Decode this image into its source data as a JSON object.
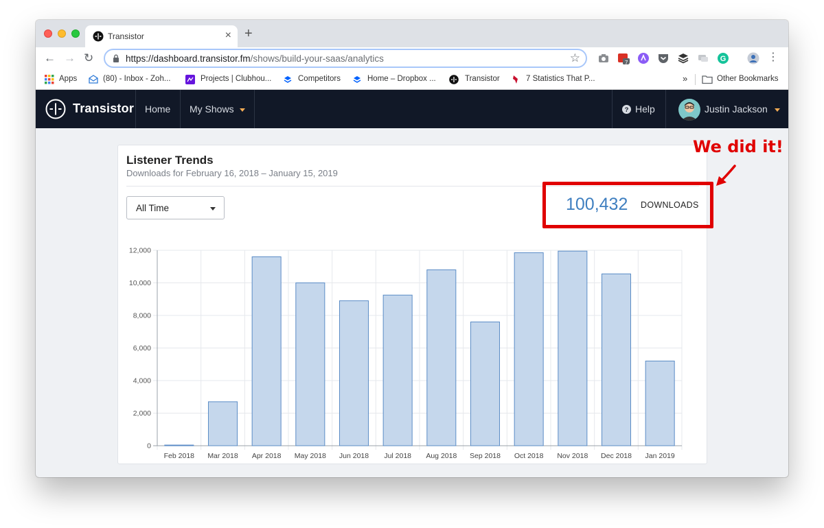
{
  "browser": {
    "tab_title": "Transistor",
    "tab_close": "×",
    "new_tab": "+",
    "url_host": "https://dashboard.transistor.fm",
    "url_path": "/shows/build-your-saas/analytics",
    "back": "←",
    "forward": "→",
    "reload": "↻",
    "star": "☆",
    "menu": "⋮",
    "extension_badge": "7"
  },
  "bookmarks": {
    "items": [
      {
        "label": "Apps",
        "icon": "apps-grid-icon"
      },
      {
        "label": "(80) - Inbox - Zoh...",
        "icon": "zoho-mail-icon"
      },
      {
        "label": "Projects | Clubhou...",
        "icon": "clubhouse-icon"
      },
      {
        "label": "Competitors",
        "icon": "dropbox-icon"
      },
      {
        "label": "Home – Dropbox ...",
        "icon": "dropbox-icon"
      },
      {
        "label": "Transistor",
        "icon": "transistor-icon"
      },
      {
        "label": "7 Statistics That P...",
        "icon": "bookmark-bird-icon"
      }
    ],
    "overflow": "»",
    "other": "Other Bookmarks"
  },
  "header": {
    "brand": "Transistor",
    "nav": [
      {
        "label": "Home"
      },
      {
        "label": "My Shows"
      }
    ],
    "help": "Help",
    "user": "Justin Jackson"
  },
  "card": {
    "title": "Listener Trends",
    "subtitle": "Downloads for February 16, 2018 – January 15, 2019",
    "range_select": "All Time",
    "total": "100,432",
    "total_label": "DOWNLOADS"
  },
  "chart_data": {
    "type": "bar",
    "categories": [
      "Feb 2018",
      "Mar 2018",
      "Apr 2018",
      "May 2018",
      "Jun 2018",
      "Jul 2018",
      "Aug 2018",
      "Sep 2018",
      "Oct 2018",
      "Nov 2018",
      "Dec 2018",
      "Jan 2019"
    ],
    "values": [
      40,
      2700,
      11600,
      10000,
      8900,
      9250,
      10800,
      7600,
      11850,
      11950,
      10550,
      5200
    ],
    "ylim": [
      0,
      12000
    ],
    "yticks": [
      0,
      2000,
      4000,
      6000,
      8000,
      10000,
      12000
    ],
    "ytick_labels": [
      "0",
      "2,000",
      "4,000",
      "6,000",
      "8,000",
      "10,000",
      "12,000"
    ],
    "grid": true,
    "bar_fill": "#c5d7ec",
    "bar_stroke": "#5b8cc6"
  },
  "annotation": {
    "callout": "We did it!",
    "color": "#e00000"
  },
  "colors": {
    "appbar": "#111827",
    "accent": "#3f7fc0",
    "caret": "#f6ad55"
  }
}
